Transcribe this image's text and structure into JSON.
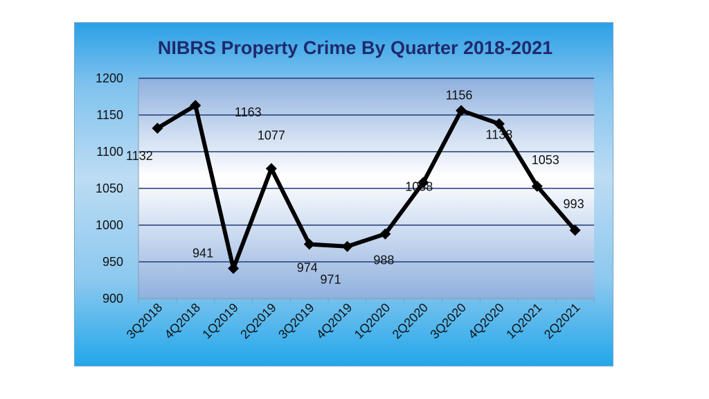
{
  "chart_data": {
    "type": "line",
    "title": "NIBRS Property Crime By Quarter 2018-2021",
    "xlabel": "",
    "ylabel": "",
    "categories": [
      "3Q2018",
      "4Q2018",
      "1Q2019",
      "2Q2019",
      "3Q2019",
      "4Q2019",
      "1Q2020",
      "2Q2020",
      "3Q2020",
      "4Q2020",
      "1Q2021",
      "2Q2021"
    ],
    "series": [
      {
        "values": [
          1132,
          1163,
          941,
          1077,
          974,
          971,
          988,
          1058,
          1156,
          1138,
          1053,
          993
        ]
      }
    ],
    "data_labels": [
      "1132",
      "1163",
      "941",
      "1077",
      "974",
      "971",
      "988",
      "1058",
      "1156",
      "1138",
      "1053",
      "993"
    ],
    "ylim": [
      900,
      1200
    ],
    "yticks": [
      "900",
      "950",
      "1000",
      "1050",
      "1100",
      "1150",
      "1200"
    ],
    "grid": true,
    "colors": {
      "line": "#000000",
      "gridline": "#1f3a78",
      "plot_bg_top": "#8fb0de",
      "plot_bg_mid": "#ffffff"
    }
  }
}
